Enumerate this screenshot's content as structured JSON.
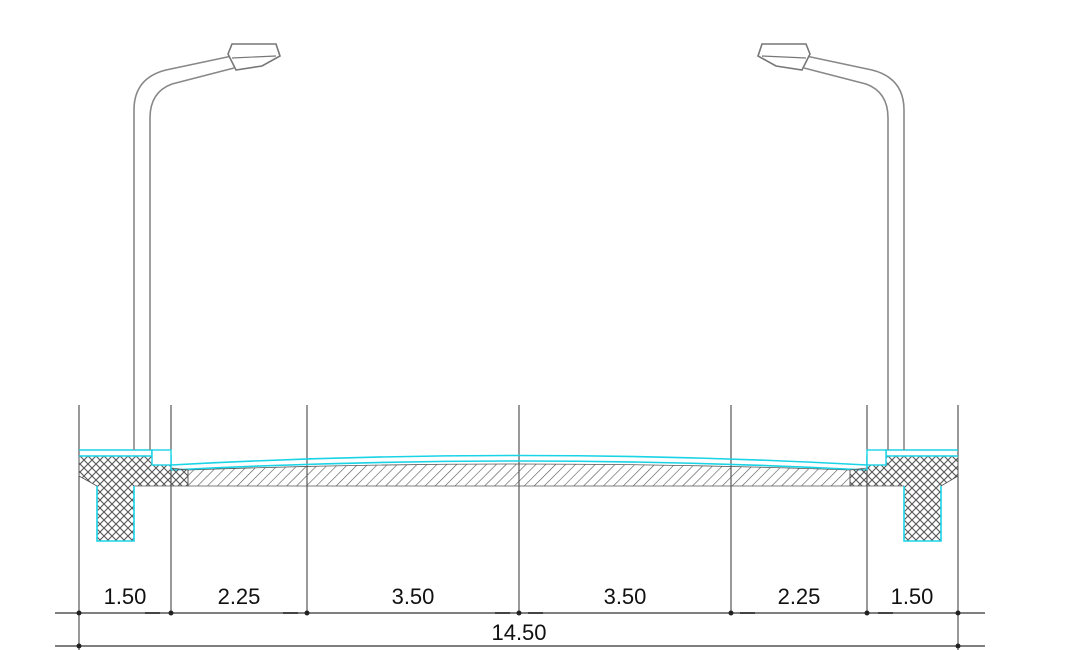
{
  "dimensions": {
    "segments": [
      "1.50",
      "2.25",
      "3.50",
      "3.50",
      "2.25",
      "1.50"
    ],
    "total": "14.50"
  },
  "colors": {
    "outline": "#19d3e6",
    "hatch": "#555555",
    "lines": "#333333",
    "pole": "#888888"
  }
}
